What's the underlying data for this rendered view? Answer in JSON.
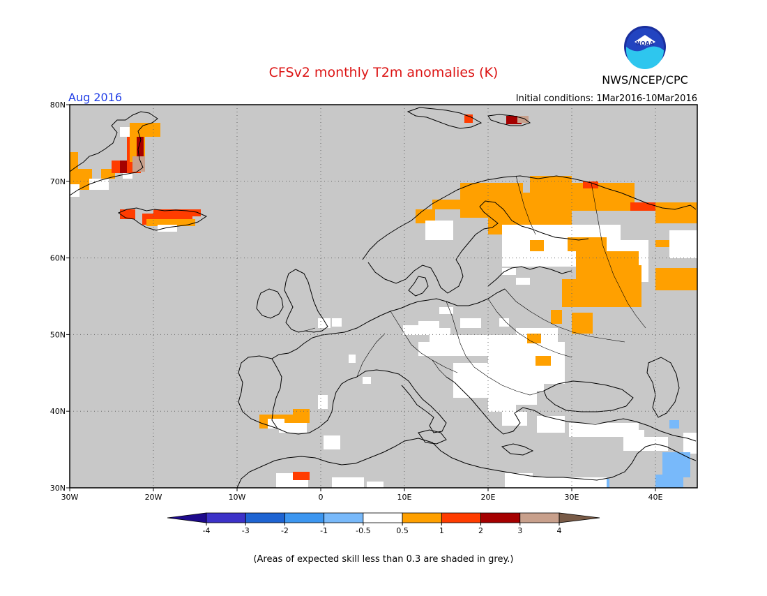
{
  "header": {
    "title": "CFSv2 monthly T2m anomalies (K)",
    "subtitle_left": "Aug 2016",
    "subtitle_right": "Initial conditions: 1Mar2016-10Mar2016",
    "agency": "NWS/NCEP/CPC",
    "logo_text": "NOAA"
  },
  "map": {
    "lat_labels": [
      "30N",
      "40N",
      "50N",
      "60N",
      "70N",
      "80N"
    ],
    "lon_labels": [
      "30W",
      "20W",
      "10W",
      "0",
      "10E",
      "20E",
      "30E",
      "40E"
    ]
  },
  "colorbar": {
    "tick_labels": [
      "-4",
      "-3",
      "-2",
      "-1",
      "-0.5",
      "0.5",
      "1",
      "2",
      "3",
      "4"
    ],
    "colors": [
      "#1e0a8c",
      "#3c32c8",
      "#1e64d2",
      "#3c96f0",
      "#78b9fa",
      "#ffffff",
      "#ffa000",
      "#ff3c00",
      "#a50000",
      "#c8a08c",
      "#785a46"
    ]
  },
  "footnote": "(Areas of expected skill less than 0.3 are shaded in grey.)",
  "colors": {
    "grey": "#c8c8c8",
    "title_red": "#dc1414",
    "subtitle_blue": "#1e3ce6"
  }
}
